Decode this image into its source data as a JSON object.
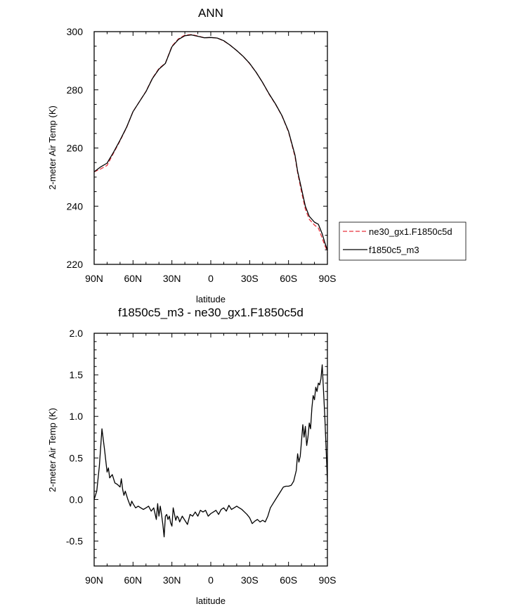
{
  "chart_data": [
    {
      "type": "line",
      "title": "ANN",
      "xlabel": "latitude",
      "ylabel": "2-meter Air Temp (K)",
      "categories": [
        "90N",
        "60N",
        "30N",
        "0",
        "30S",
        "60S",
        "90S"
      ],
      "x_tick_values": [
        90,
        60,
        30,
        0,
        -30,
        -60,
        -90
      ],
      "xlim": [
        90,
        -90
      ],
      "ylim": [
        220,
        300
      ],
      "y_ticks": [
        220,
        240,
        260,
        280,
        300
      ],
      "grid": false,
      "legend_position": "right",
      "series": [
        {
          "name": "ne30_gx1.F1850c5d",
          "color": "#e8323c",
          "dash": "dashed",
          "x": [
            90,
            85,
            80,
            75,
            70,
            65,
            60,
            55,
            50,
            45,
            40,
            35,
            30,
            25,
            20,
            15,
            10,
            5,
            0,
            -5,
            -10,
            -15,
            -20,
            -25,
            -30,
            -35,
            -40,
            -45,
            -50,
            -55,
            -60,
            -65,
            -67,
            -70,
            -73,
            -76,
            -80,
            -83,
            -86,
            -88,
            -90
          ],
          "y": [
            251.8,
            252.8,
            254.0,
            258.3,
            262.5,
            267.0,
            272.5,
            276.0,
            279.5,
            284.0,
            287.3,
            289.2,
            295.0,
            297.5,
            298.8,
            299.0,
            298.5,
            297.9,
            298.0,
            297.8,
            296.8,
            295.3,
            293.5,
            291.5,
            289.0,
            286.0,
            282.5,
            278.5,
            275.0,
            271.0,
            265.5,
            257.0,
            251.5,
            245.0,
            239.0,
            235.5,
            233.5,
            232.5,
            229.0,
            226.5,
            224.5
          ]
        },
        {
          "name": "f1850c5_m3",
          "color": "#000000",
          "dash": "solid",
          "x": [
            90,
            85,
            80,
            75,
            70,
            65,
            60,
            55,
            50,
            45,
            40,
            35,
            30,
            25,
            20,
            15,
            10,
            5,
            0,
            -5,
            -10,
            -15,
            -20,
            -25,
            -30,
            -35,
            -40,
            -45,
            -50,
            -55,
            -60,
            -65,
            -67,
            -70,
            -73,
            -76,
            -80,
            -83,
            -86,
            -88,
            -90
          ],
          "y": [
            251.8,
            253.5,
            254.8,
            258.6,
            262.7,
            267.1,
            272.5,
            276.0,
            279.4,
            283.9,
            287.1,
            289.1,
            294.8,
            297.3,
            298.6,
            298.9,
            298.4,
            297.9,
            298.0,
            297.8,
            296.9,
            295.3,
            293.5,
            291.5,
            289.1,
            286.0,
            282.5,
            278.6,
            275.1,
            271.1,
            265.7,
            257.5,
            252.0,
            246.0,
            240.0,
            236.5,
            234.5,
            233.8,
            230.5,
            227.5,
            224.8
          ]
        }
      ]
    },
    {
      "type": "line",
      "title": "f1850c5_m3 - ne30_gx1.F1850c5d",
      "xlabel": "latitude",
      "ylabel": "2-meter Air Temp (K)",
      "categories": [
        "90N",
        "60N",
        "30N",
        "0",
        "30S",
        "60S",
        "90S"
      ],
      "x_tick_values": [
        90,
        60,
        30,
        0,
        -30,
        -60,
        -90
      ],
      "xlim": [
        90,
        -90
      ],
      "ylim": [
        -0.8,
        2.0
      ],
      "y_ticks": [
        -0.5,
        0.0,
        0.5,
        1.0,
        1.5,
        2.0
      ],
      "y_tick_labels": [
        "-0.5",
        "0.0",
        "0.5",
        "1.0",
        "1.5",
        "2.0"
      ],
      "grid": false,
      "series": [
        {
          "color": "#000000",
          "x": [
            90,
            88,
            86,
            84,
            82,
            80,
            79,
            78,
            76,
            74,
            72,
            70,
            69,
            68,
            67,
            66,
            64,
            62,
            61,
            60,
            58,
            56,
            54,
            52,
            50,
            48,
            46,
            44,
            42,
            41,
            40,
            39,
            38,
            37,
            36,
            35,
            34,
            33,
            32,
            31,
            30,
            29,
            28,
            27,
            26,
            25,
            24,
            22,
            20,
            18,
            16,
            14,
            12,
            10,
            8,
            6,
            4,
            2,
            0,
            -2,
            -4,
            -6,
            -8,
            -10,
            -12,
            -14,
            -16,
            -18,
            -20,
            -22,
            -24,
            -26,
            -28,
            -30,
            -32,
            -34,
            -36,
            -38,
            -40,
            -42,
            -44,
            -46,
            -48,
            -50,
            -52,
            -54,
            -56,
            -58,
            -60,
            -62,
            -64,
            -66,
            -67,
            -68,
            -69,
            -70,
            -71,
            -72,
            -73,
            -74,
            -75,
            -76,
            -77,
            -78,
            -79,
            -80,
            -81,
            -82,
            -83,
            -84,
            -85,
            -86,
            -87,
            -88,
            -89,
            -90
          ],
          "y": [
            0.0,
            0.1,
            0.4,
            0.85,
            0.6,
            0.33,
            0.38,
            0.26,
            0.3,
            0.2,
            0.18,
            0.15,
            0.25,
            0.12,
            0.05,
            0.1,
            0.0,
            -0.08,
            -0.02,
            -0.05,
            -0.1,
            -0.08,
            -0.1,
            -0.12,
            -0.1,
            -0.08,
            -0.14,
            -0.1,
            -0.24,
            -0.05,
            -0.2,
            -0.08,
            -0.18,
            -0.3,
            -0.45,
            -0.2,
            -0.18,
            -0.24,
            -0.2,
            -0.28,
            -0.32,
            -0.1,
            -0.18,
            -0.25,
            -0.2,
            -0.22,
            -0.27,
            -0.2,
            -0.25,
            -0.3,
            -0.18,
            -0.2,
            -0.15,
            -0.2,
            -0.13,
            -0.15,
            -0.13,
            -0.2,
            -0.17,
            -0.15,
            -0.13,
            -0.18,
            -0.12,
            -0.1,
            -0.14,
            -0.07,
            -0.12,
            -0.1,
            -0.08,
            -0.1,
            -0.12,
            -0.15,
            -0.18,
            -0.22,
            -0.29,
            -0.26,
            -0.24,
            -0.27,
            -0.25,
            -0.27,
            -0.2,
            -0.1,
            -0.05,
            0.0,
            0.05,
            0.1,
            0.15,
            0.16,
            0.16,
            0.17,
            0.22,
            0.35,
            0.55,
            0.45,
            0.52,
            0.7,
            0.9,
            0.75,
            0.88,
            0.65,
            0.75,
            0.92,
            0.85,
            1.1,
            1.25,
            1.2,
            1.35,
            1.3,
            1.4,
            1.38,
            1.45,
            1.62,
            1.3,
            1.0,
            0.6,
            0.22
          ]
        }
      ]
    }
  ]
}
